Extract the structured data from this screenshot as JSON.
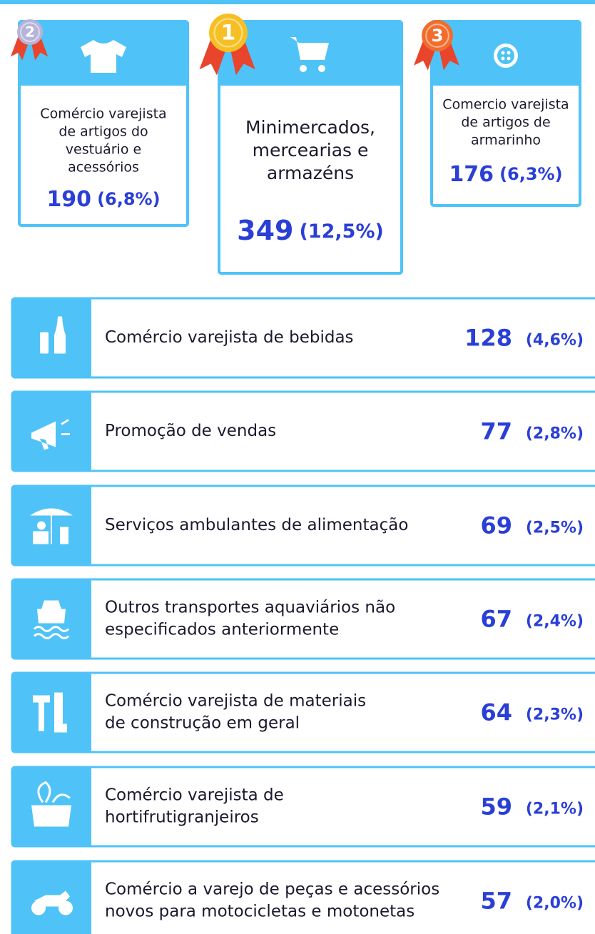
{
  "podium": [
    {
      "rank": "2",
      "label_lines": [
        "Comércio varejista",
        "de artigos do",
        "vestuário e",
        "acessórios"
      ],
      "count": 190,
      "percent": "(6,8%)"
    },
    {
      "rank": "1",
      "label_lines": [
        "Minimercados,",
        "mercearias e",
        "armazéns"
      ],
      "count": 349,
      "percent": "(12,5%)"
    },
    {
      "rank": "3",
      "label_lines": [
        "Comercio varejista",
        "de artigos de",
        "armarinho"
      ],
      "count": 176,
      "percent": "(6,3%)"
    }
  ],
  "list": [
    {
      "label_lines": [
        "Comércio varejista de bebidas"
      ],
      "count": 128,
      "percent": "(4,6%)"
    },
    {
      "label_lines": [
        "Promoção de vendas"
      ],
      "count": 77,
      "percent": "(2,8%)"
    },
    {
      "label_lines": [
        "Serviços ambulantes de alimentação"
      ],
      "count": 69,
      "percent": "(2,5%)"
    },
    {
      "label_lines": [
        "Outros transportes aquaviários não",
        "especificados anteriormente"
      ],
      "count": 67,
      "percent": "(2,4%)"
    },
    {
      "label_lines": [
        "Comércio varejista de materiais",
        "de construção em geral"
      ],
      "count": 64,
      "percent": "(2,3%)"
    },
    {
      "label_lines": [
        "Comércio varejista de",
        "hortifrutigranjeiros"
      ],
      "count": 59,
      "percent": "(2,1%)"
    },
    {
      "label_lines": [
        "Comércio a varejo de peças e acessórios",
        "novos para motocicletas e motonetas"
      ],
      "count": 57,
      "percent": "(2,0%)"
    }
  ]
}
